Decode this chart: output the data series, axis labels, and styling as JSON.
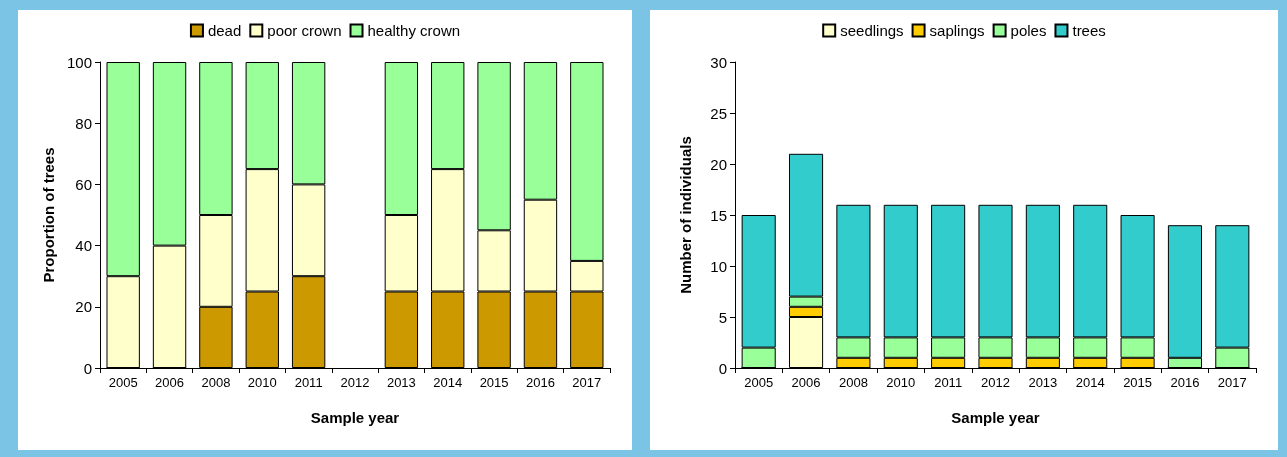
{
  "chart_data": [
    {
      "type": "bar",
      "stacked": true,
      "xlabel": "Sample year",
      "ylabel": "Proportion of trees",
      "categories": [
        "2005",
        "2006",
        "2008",
        "2010",
        "2011",
        "2012",
        "2013",
        "2014",
        "2015",
        "2016",
        "2017"
      ],
      "ylim": [
        0,
        100
      ],
      "yticks": [
        0,
        20,
        40,
        60,
        80,
        100
      ],
      "grid": false,
      "legend": "top",
      "series": [
        {
          "name": "dead",
          "color": "#cc9900",
          "values": [
            0,
            0,
            20,
            25,
            30,
            null,
            25,
            25,
            25,
            25,
            25
          ]
        },
        {
          "name": "poor crown",
          "color": "#ffffcc",
          "values": [
            30,
            40,
            30,
            40,
            30,
            null,
            25,
            40,
            20,
            30,
            10
          ]
        },
        {
          "name": "healthy crown",
          "color": "#99ff99",
          "values": [
            70,
            60,
            50,
            35,
            40,
            null,
            50,
            35,
            55,
            45,
            65
          ]
        }
      ]
    },
    {
      "type": "bar",
      "stacked": true,
      "xlabel": "Sample year",
      "ylabel": "Number of individuals",
      "categories": [
        "2005",
        "2006",
        "2008",
        "2010",
        "2011",
        "2012",
        "2013",
        "2014",
        "2015",
        "2016",
        "2017"
      ],
      "ylim": [
        0,
        30
      ],
      "yticks": [
        0,
        5,
        10,
        15,
        20,
        25,
        30
      ],
      "grid": false,
      "legend": "top",
      "series": [
        {
          "name": "seedlings",
          "color": "#ffffcc",
          "values": [
            0,
            5,
            0,
            0,
            0,
            0,
            0,
            0,
            0,
            0,
            0
          ]
        },
        {
          "name": "saplings",
          "color": "#ffcc00",
          "values": [
            0,
            1,
            1,
            1,
            1,
            1,
            1,
            1,
            1,
            0,
            0
          ]
        },
        {
          "name": "poles",
          "color": "#99ff99",
          "values": [
            2,
            1,
            2,
            2,
            2,
            2,
            2,
            2,
            2,
            1,
            2
          ]
        },
        {
          "name": "trees",
          "color": "#33cccc",
          "values": [
            13,
            14,
            13,
            13,
            13,
            13,
            13,
            13,
            12,
            13,
            12
          ]
        }
      ]
    }
  ]
}
